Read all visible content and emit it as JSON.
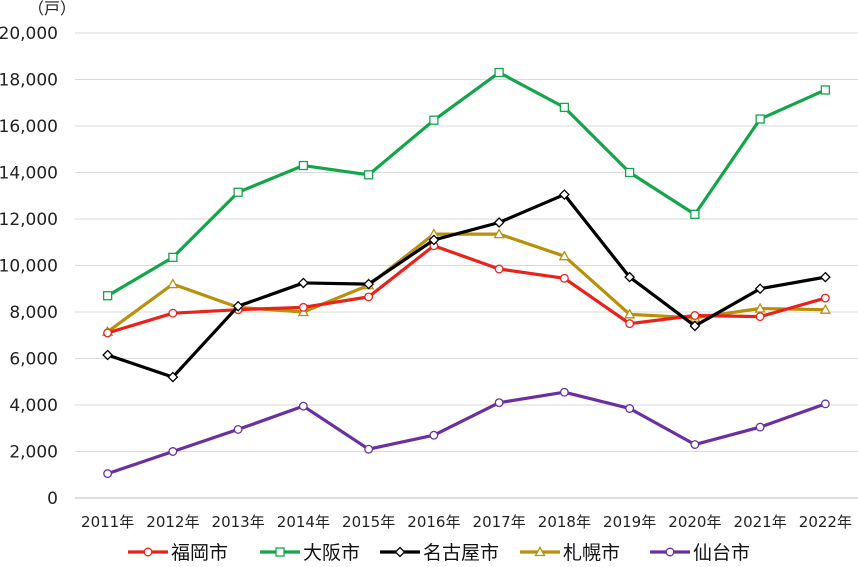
{
  "chart_data": {
    "type": "line",
    "y_unit": "（戸）",
    "categories": [
      "2011年",
      "2012年",
      "2013年",
      "2014年",
      "2015年",
      "2016年",
      "2017年",
      "2018年",
      "2019年",
      "2020年",
      "2021年",
      "2022年"
    ],
    "ylim": [
      0,
      20000
    ],
    "yticks": [
      0,
      2000,
      4000,
      6000,
      8000,
      10000,
      12000,
      14000,
      16000,
      18000,
      20000
    ],
    "ytick_labels": [
      "0",
      "2,000",
      "4,000",
      "6,000",
      "8,000",
      "10,000",
      "12,000",
      "14,000",
      "16,000",
      "18,000",
      "20,000"
    ],
    "grid": true,
    "legend_position": "bottom",
    "series": [
      {
        "name": "福岡市",
        "color": "#e8231b",
        "marker": "circle",
        "values": [
          7100,
          7950,
          8100,
          8200,
          8650,
          10850,
          9850,
          9450,
          7500,
          7850,
          7800,
          8600
        ]
      },
      {
        "name": "大阪市",
        "color": "#12a54a",
        "marker": "square",
        "values": [
          8700,
          10350,
          13150,
          14300,
          13900,
          16250,
          18300,
          16800,
          14000,
          12200,
          16300,
          17550
        ]
      },
      {
        "name": "名古屋市",
        "color": "#000000",
        "marker": "diamond",
        "values": [
          6150,
          5200,
          8250,
          9250,
          9200,
          11100,
          11850,
          13050,
          9500,
          7400,
          9000,
          9500
        ]
      },
      {
        "name": "札幌市",
        "color": "#b8900a",
        "marker": "triangle",
        "values": [
          7150,
          9200,
          8200,
          8000,
          9150,
          11350,
          11350,
          10400,
          7900,
          7750,
          8150,
          8100
        ]
      },
      {
        "name": "仙台市",
        "color": "#6a2fa0",
        "marker": "circle",
        "values": [
          1050,
          2000,
          2950,
          3950,
          2100,
          2700,
          4100,
          4550,
          3850,
          2300,
          3050,
          4050
        ]
      }
    ]
  }
}
